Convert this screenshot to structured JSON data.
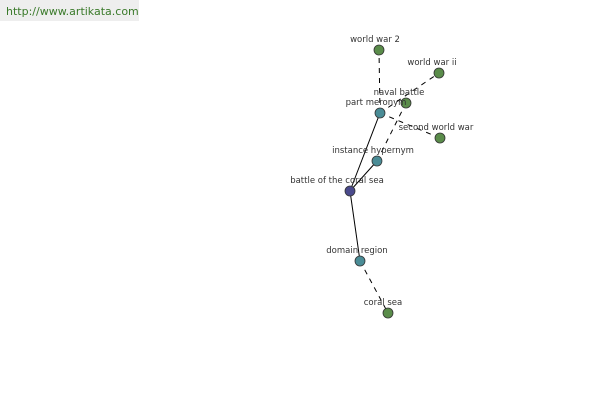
{
  "header": {
    "url": "http://www.artikata.com"
  },
  "nodes": [
    {
      "label": "battle of the coral sea"
    },
    {
      "label": "part meronym"
    },
    {
      "label": "instance hypernym"
    },
    {
      "label": "domain region"
    },
    {
      "label": "world war 2"
    },
    {
      "label": "world war ii"
    },
    {
      "label": "naval battle"
    },
    {
      "label": "second world war"
    },
    {
      "label": "coral sea"
    }
  ]
}
